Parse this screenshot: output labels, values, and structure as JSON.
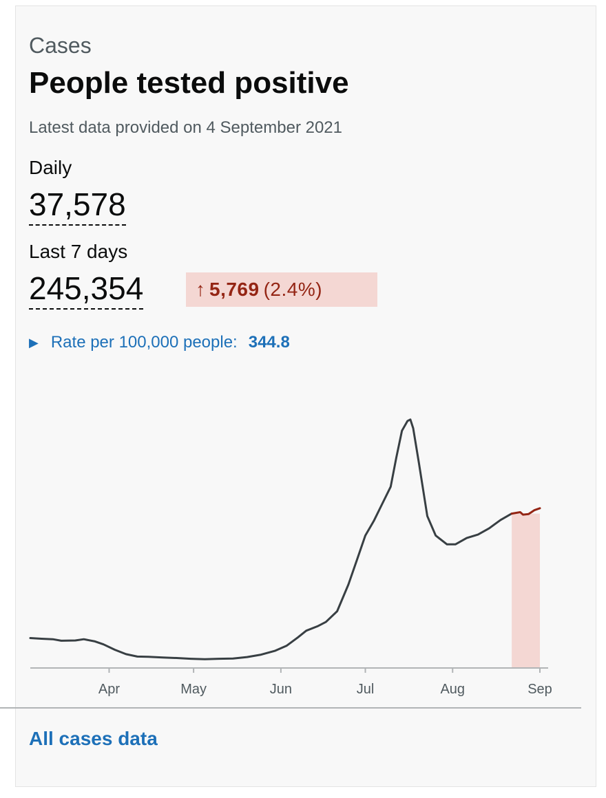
{
  "card": {
    "caption": "Cases",
    "title": "People tested positive",
    "updated": "Latest data provided on 4 September 2021"
  },
  "daily": {
    "label": "Daily",
    "value": "37,578"
  },
  "last7": {
    "label": "Last 7 days",
    "value": "245,354",
    "change_arrow": "↑",
    "change_value": "5,769",
    "change_pct": "(2.4%)"
  },
  "rate": {
    "label": "Rate per 100,000 people:",
    "value": "344.8"
  },
  "link": {
    "label": "All cases data"
  },
  "colors": {
    "line": "#383f43",
    "highlight_line": "#942514",
    "highlight_fill": "#f4d7d3",
    "link": "#1d70b8"
  },
  "chart_data": {
    "type": "line",
    "title": "",
    "xlabel": "",
    "ylabel": "",
    "ticks": [
      {
        "label": "Apr",
        "x": "2021-04-01"
      },
      {
        "label": "May",
        "x": "2021-05-01"
      },
      {
        "label": "Jun",
        "x": "2021-06-01"
      },
      {
        "label": "Jul",
        "x": "2021-07-01"
      },
      {
        "label": "Aug",
        "x": "2021-08-01"
      },
      {
        "label": "Sep",
        "x": "2021-09-01"
      }
    ],
    "xlim": [
      "2021-03-04",
      "2021-09-01"
    ],
    "ylim": [
      0,
      55000
    ],
    "highlight_range": [
      "2021-08-22",
      "2021-09-01"
    ],
    "grid": false,
    "series": [
      {
        "values": [
          [
            "2021-03-04",
            6000
          ],
          [
            "2021-03-08",
            5850
          ],
          [
            "2021-03-12",
            5750
          ],
          [
            "2021-03-15",
            5450
          ],
          [
            "2021-03-20",
            5500
          ],
          [
            "2021-03-23",
            5750
          ],
          [
            "2021-03-27",
            5300
          ],
          [
            "2021-03-30",
            4700
          ],
          [
            "2021-04-03",
            3600
          ],
          [
            "2021-04-07",
            2700
          ],
          [
            "2021-04-11",
            2200
          ],
          [
            "2021-04-15",
            2150
          ],
          [
            "2021-04-20",
            2000
          ],
          [
            "2021-04-25",
            1900
          ],
          [
            "2021-04-30",
            1750
          ],
          [
            "2021-05-05",
            1650
          ],
          [
            "2021-05-10",
            1750
          ],
          [
            "2021-05-15",
            1800
          ],
          [
            "2021-05-20",
            2100
          ],
          [
            "2021-05-25",
            2600
          ],
          [
            "2021-05-30",
            3400
          ],
          [
            "2021-06-03",
            4400
          ],
          [
            "2021-06-07",
            6100
          ],
          [
            "2021-06-10",
            7500
          ],
          [
            "2021-06-14",
            8400
          ],
          [
            "2021-06-17",
            9300
          ],
          [
            "2021-06-21",
            11500
          ],
          [
            "2021-06-25",
            17000
          ],
          [
            "2021-06-28",
            22000
          ],
          [
            "2021-07-01",
            27000
          ],
          [
            "2021-07-04",
            30000
          ],
          [
            "2021-07-07",
            33500
          ],
          [
            "2021-07-10",
            37000
          ],
          [
            "2021-07-12",
            43000
          ],
          [
            "2021-07-14",
            48500
          ],
          [
            "2021-07-16",
            50500
          ],
          [
            "2021-07-17",
            50800
          ],
          [
            "2021-07-18",
            49000
          ],
          [
            "2021-07-20",
            42000
          ],
          [
            "2021-07-23",
            31000
          ],
          [
            "2021-07-26",
            27000
          ],
          [
            "2021-07-30",
            25200
          ],
          [
            "2021-08-02",
            25200
          ],
          [
            "2021-08-06",
            26500
          ],
          [
            "2021-08-10",
            27200
          ],
          [
            "2021-08-14",
            28500
          ],
          [
            "2021-08-18",
            30200
          ],
          [
            "2021-08-22",
            31500
          ]
        ]
      },
      {
        "values": [
          [
            "2021-08-22",
            31500
          ],
          [
            "2021-08-25",
            31800
          ],
          [
            "2021-08-26",
            31300
          ],
          [
            "2021-08-28",
            31400
          ],
          [
            "2021-08-30",
            32200
          ],
          [
            "2021-09-01",
            32600
          ]
        ]
      }
    ]
  }
}
